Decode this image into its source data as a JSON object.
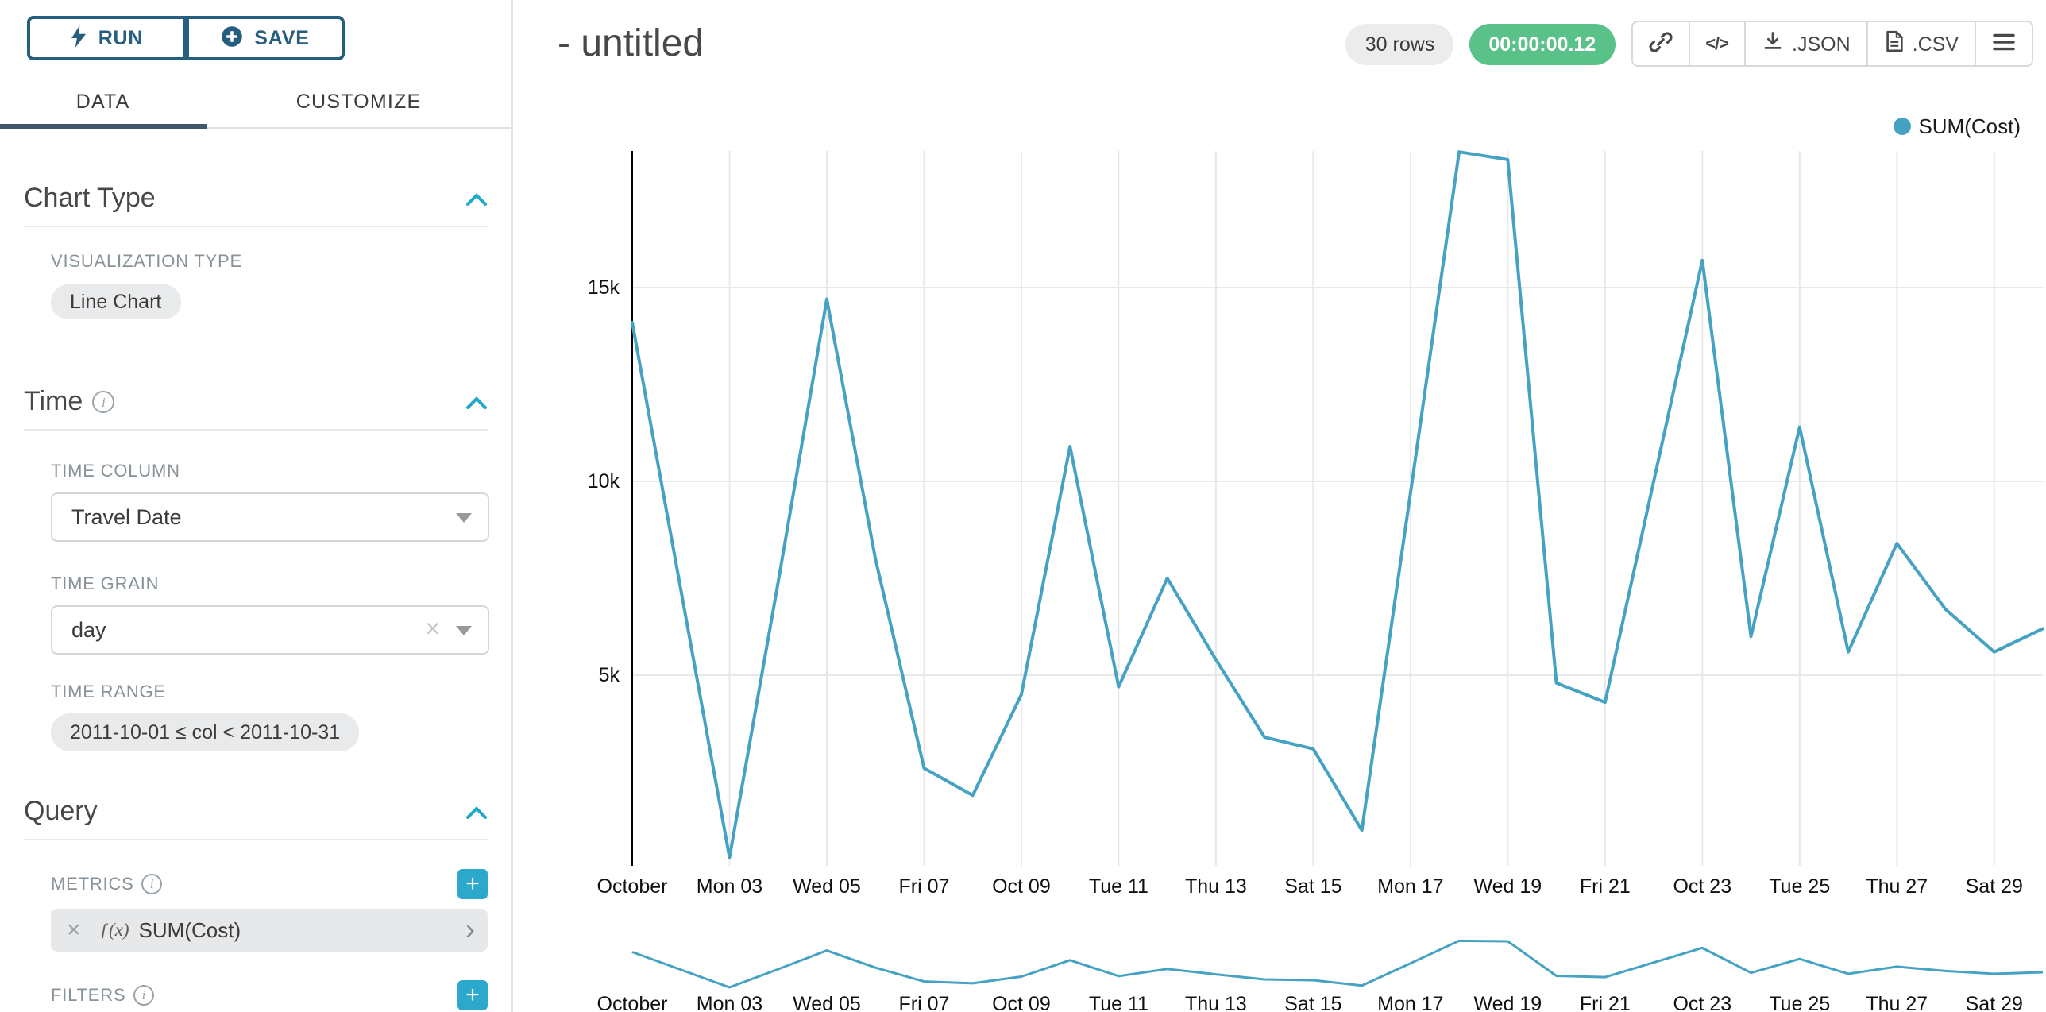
{
  "sidebar": {
    "run_button": "RUN",
    "save_button": "SAVE",
    "tabs": [
      {
        "label": "DATA",
        "active": true
      },
      {
        "label": "CUSTOMIZE",
        "active": false
      }
    ],
    "chart_type_section": {
      "title": "Chart Type",
      "visualization_type_label": "VISUALIZATION TYPE",
      "visualization_type_value": "Line Chart"
    },
    "time_section": {
      "title": "Time",
      "time_column_label": "TIME COLUMN",
      "time_column_value": "Travel Date",
      "time_grain_label": "TIME GRAIN",
      "time_grain_value": "day",
      "time_range_label": "TIME RANGE",
      "time_range_value": "2011-10-01 ≤ col < 2011-10-31"
    },
    "query_section": {
      "title": "Query",
      "metrics_label": "METRICS",
      "metric_chip": {
        "fx": "ƒ(x)",
        "label": "SUM(Cost)"
      },
      "filters_label": "FILTERS"
    }
  },
  "header": {
    "title": "- untitled",
    "row_count_badge": "30 rows",
    "timer_badge": "00:00:00.12",
    "embed_code_glyph": "</>",
    "export_json_label": ".JSON",
    "export_csv_label": ".CSV"
  },
  "colors": {
    "accent_teal": "#20A7C9",
    "line_color": "#45A2C3",
    "navy": "#255E7E",
    "timer_green": "#5AC189"
  },
  "chart_data": {
    "type": "line",
    "title": "",
    "legend": [
      {
        "label": "SUM(Cost)",
        "color": "#45A2C3"
      }
    ],
    "grid": true,
    "legend_position": "top-right",
    "x_ticks": [
      {
        "day": 0,
        "label": "October"
      },
      {
        "day": 2,
        "label": "Mon 03"
      },
      {
        "day": 4,
        "label": "Wed 05"
      },
      {
        "day": 6,
        "label": "Fri 07"
      },
      {
        "day": 8,
        "label": "Oct 09"
      },
      {
        "day": 10,
        "label": "Tue 11"
      },
      {
        "day": 12,
        "label": "Thu 13"
      },
      {
        "day": 14,
        "label": "Sat 15"
      },
      {
        "day": 16,
        "label": "Mon 17"
      },
      {
        "day": 18,
        "label": "Wed 19"
      },
      {
        "day": 20,
        "label": "Fri 21"
      },
      {
        "day": 22,
        "label": "Oct 23"
      },
      {
        "day": 24,
        "label": "Tue 25"
      },
      {
        "day": 26,
        "label": "Thu 27"
      },
      {
        "day": 28,
        "label": "Sat 29"
      }
    ],
    "y_ticks": [
      {
        "value": 5000,
        "label": "5k"
      },
      {
        "value": 10000,
        "label": "10k"
      },
      {
        "value": 15000,
        "label": "15k"
      }
    ],
    "ylim": [
      0,
      18600
    ],
    "series": [
      {
        "name": "SUM(Cost)",
        "values": [
          14100,
          7200,
          300,
          7400,
          14700,
          8000,
          2600,
          1900,
          4500,
          10900,
          4700,
          7500,
          5400,
          3400,
          3100,
          1000,
          9700,
          18500,
          18300,
          4800,
          4300,
          10000,
          15700,
          6000,
          11400,
          5600,
          8400,
          6700,
          5600,
          6200
        ]
      }
    ],
    "brush_chart": true
  }
}
